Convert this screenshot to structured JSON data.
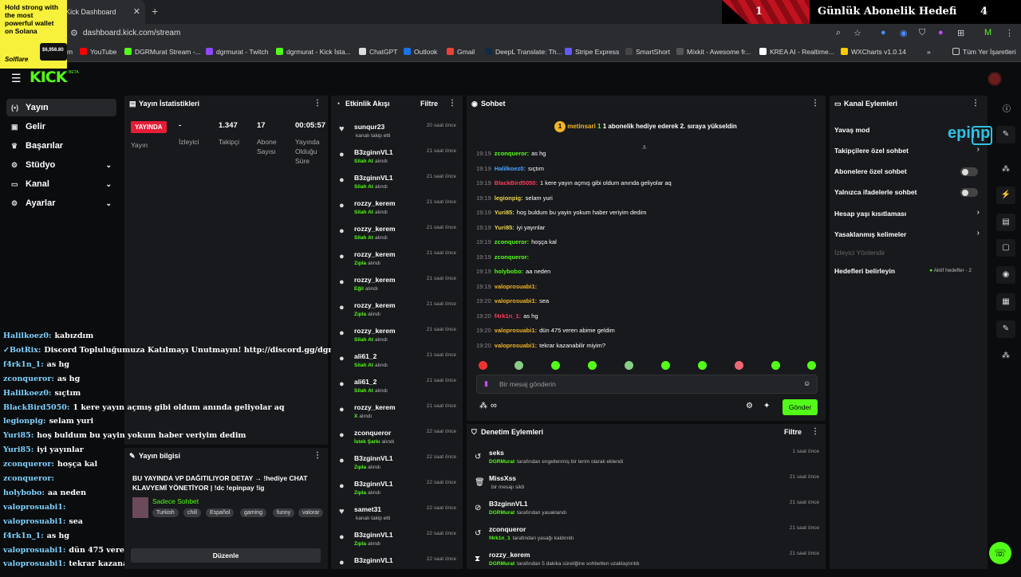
{
  "browser": {
    "tab_title": "Kick Dashboard",
    "url": "dashboard.kick.com/stream",
    "bookmarks": [
      "m",
      "YouTube",
      "DGRMurat Stream -...",
      "dgrmurat - Twitch",
      "dgrmurat - Kick İsta...",
      "ChatGPT",
      "Outlook",
      "Gmail",
      "DeepL Translate: Th...",
      "Stripe Express",
      "SmartShort",
      "Mixkit - Awesome fr...",
      "KREA AI - Realtime...",
      "WXCharts v1.0.14",
      "Tüm Yer İşaretleri"
    ]
  },
  "ad": {
    "text": "Hold strong with the most powerful wallet on Solana",
    "brand": "Solflare",
    "price": "$6,956.80"
  },
  "goal": {
    "left_value": "1",
    "title": "Günlük Abonelik Hedefi",
    "right_value": "4"
  },
  "header": {
    "logo": "KICK",
    "beta": "BETA"
  },
  "nav": {
    "items": [
      {
        "label": "Yayın",
        "icon": "broadcast-icon"
      },
      {
        "label": "Gelir",
        "icon": "money-icon"
      },
      {
        "label": "Başarılar",
        "icon": "trophy-icon"
      },
      {
        "label": "Stüdyo",
        "icon": "gear-icon"
      },
      {
        "label": "Kanal",
        "icon": "monitor-icon"
      },
      {
        "label": "Ayarlar",
        "icon": "gear-icon"
      }
    ]
  },
  "stats": {
    "title": "Yayın İstatistikleri",
    "live": "YAYINDA",
    "live_label": "Yayın",
    "viewers_value": "-",
    "viewers_label": "İzleyici",
    "followers_value": "1.347",
    "followers_label": "Takipçi",
    "subs_value": "17",
    "subs_label": "Abone Sayısı",
    "duration_value": "00:05:57",
    "duration_label": "Yayında Olduğu Süre"
  },
  "stream_info": {
    "title": "Yayın bilgisi",
    "stream_title": "BU YAYINDA VP DAĞITILIYOR DETAY → !hediye CHAT KLAVYEMİ YÖNETİYOR | !dc !epinpay !ig",
    "category": "Sadece Sohbet",
    "tags": [
      "Turkish",
      "chill",
      "Español",
      "gaming",
      "funny",
      "valorar"
    ],
    "edit": "Düzenle"
  },
  "overlay_chat": [
    {
      "u": "Halilkoez0:",
      "m": "kabızdım"
    },
    {
      "u": "✓BotRix:",
      "m": "Discord Topluluğumuza Katılmayı Unutmayın! http://discord.gg/dgrmurat"
    },
    {
      "u": "f4rk1n_1:",
      "m": "as hg"
    },
    {
      "u": "zconqueror:",
      "m": "as hg"
    },
    {
      "u": "Halilkoez0:",
      "m": "sıçtım"
    },
    {
      "u": "BlackBird5050:",
      "m": "1 kere yayın açmış gibi oldum anında geliyolar aq"
    },
    {
      "u": "legionpig:",
      "m": "selam yuri"
    },
    {
      "u": "Yuri85:",
      "m": "hoş buldum bu yayin yokum haber veriyim dedim"
    },
    {
      "u": "Yuri85:",
      "m": "iyi yayınlar"
    },
    {
      "u": "zconqueror:",
      "m": "hoşça kal"
    },
    {
      "u": "zconqueror:",
      "m": ""
    },
    {
      "u": "holybobo:",
      "m": "aa neden"
    },
    {
      "u": "valoprosuabi1:",
      "m": ""
    },
    {
      "u": "valoprosuabi1:",
      "m": "sea"
    },
    {
      "u": "f4rk1n_1:",
      "m": "as hg"
    },
    {
      "u": "valoprosuabi1:",
      "m": "dün 475 veren abime geldim"
    },
    {
      "u": "valoprosuabi1:",
      "m": "tekrar kazanabilir miyim?"
    }
  ],
  "activity": {
    "title": "Etkinlik Akışı",
    "filter": "Filtre",
    "items": [
      {
        "name": "sunqur23",
        "event": "kanalı takip etti",
        "action": "",
        "time": "20 saat önce",
        "icon": "heart-icon"
      },
      {
        "name": "B3zginnVL1",
        "event": "alındı",
        "action": "Silah At",
        "time": "21 saat önce",
        "icon": "gift-icon"
      },
      {
        "name": "B3zginnVL1",
        "event": "alındı",
        "action": "Silah At",
        "time": "21 saat önce",
        "icon": "gift-icon"
      },
      {
        "name": "rozzy_kerem",
        "event": "alındı",
        "action": "Silah At",
        "time": "21 saat önce",
        "icon": "gift-icon"
      },
      {
        "name": "rozzy_kerem",
        "event": "alındı",
        "action": "Silah At",
        "time": "21 saat önce",
        "icon": "gift-icon"
      },
      {
        "name": "rozzy_kerem",
        "event": "alındı",
        "action": "Zıpla",
        "time": "21 saat önce",
        "icon": "gift-icon"
      },
      {
        "name": "rozzy_kerem",
        "event": "alındı",
        "action": "Eğil",
        "time": "21 saat önce",
        "icon": "gift-icon"
      },
      {
        "name": "rozzy_kerem",
        "event": "alındı",
        "action": "Zıpla",
        "time": "21 saat önce",
        "icon": "gift-icon"
      },
      {
        "name": "rozzy_kerem",
        "event": "alındı",
        "action": "Silah At",
        "time": "21 saat önce",
        "icon": "gift-icon"
      },
      {
        "name": "ali61_2",
        "event": "alındı",
        "action": "Silah At",
        "time": "21 saat önce",
        "icon": "gift-icon"
      },
      {
        "name": "ali61_2",
        "event": "alındı",
        "action": "Silah At",
        "time": "21 saat önce",
        "icon": "gift-icon"
      },
      {
        "name": "rozzy_kerem",
        "event": "alındı",
        "action": "X",
        "time": "21 saat önce",
        "icon": "gift-icon"
      },
      {
        "name": "zconqueror",
        "event": "alındı",
        "action": "İstek Şarkı",
        "time": "22 saat önce",
        "icon": "gift-icon"
      },
      {
        "name": "B3zginnVL1",
        "event": "alındı",
        "action": "Zıpla",
        "time": "22 saat önce",
        "icon": "gift-icon"
      },
      {
        "name": "B3zginnVL1",
        "event": "alındı",
        "action": "Zıpla",
        "time": "22 saat önce",
        "icon": "gift-icon"
      },
      {
        "name": "samet31",
        "event": "kanalı takip etti",
        "action": "",
        "time": "22 saat önce",
        "icon": "heart-icon"
      },
      {
        "name": "B3zginnVL1",
        "event": "alındı",
        "action": "Zıpla",
        "time": "22 saat önce",
        "icon": "gift-icon"
      },
      {
        "name": "B3zginnVL1",
        "event": "",
        "action": "",
        "time": "22 saat önce",
        "icon": "gift-icon"
      }
    ]
  },
  "chat": {
    "title": "Sohbet",
    "pinned_user": "metinsari",
    "pinned_count": "1",
    "pinned_text": "1 abonelik hediye ederek 2. sıraya yükseldin",
    "input_placeholder": "Bir mesaj gönderin",
    "send": "Gönder",
    "messages": [
      {
        "t": "19:19",
        "u": "zconqueror:",
        "m": "as hg",
        "c": "#53fc18"
      },
      {
        "t": "19:19",
        "u": "Halilkoez0:",
        "m": "sıçtım",
        "c": "#4aa3ff"
      },
      {
        "t": "19:19",
        "u": "BlackBird5050:",
        "m": "1 kere yayın açmış gibi oldum anında geliyolar aq",
        "c": "#ff3b5c"
      },
      {
        "t": "19:19",
        "u": "legionpig:",
        "m": "selam yuri",
        "c": "#e8d44d"
      },
      {
        "t": "19:19",
        "u": "Yuri85:",
        "m": "hoş buldum bu yayin yokum haber veriyim dedim",
        "c": "#e8d44d"
      },
      {
        "t": "19:19",
        "u": "Yuri85:",
        "m": "iyi yayınlar",
        "c": "#e8d44d"
      },
      {
        "t": "19:19",
        "u": "zconqueror:",
        "m": "hoşça kal",
        "c": "#53fc18"
      },
      {
        "t": "19:19",
        "u": "zconqueror:",
        "m": "",
        "c": "#53fc18"
      },
      {
        "t": "19:19",
        "u": "holybobo:",
        "m": "aa neden",
        "c": "#53fc18"
      },
      {
        "t": "19:19",
        "u": "valoprosuabi1:",
        "m": "",
        "c": "#f0b429"
      },
      {
        "t": "19:20",
        "u": "valoprosuabi1:",
        "m": "sea",
        "c": "#f0b429"
      },
      {
        "t": "19:20",
        "u": "f4rk1n_1:",
        "m": "as hg",
        "c": "#ff3b5c"
      },
      {
        "t": "19:20",
        "u": "valoprosuabi1:",
        "m": "dün 475 veren abime geldim",
        "c": "#f0b429"
      },
      {
        "t": "19:20",
        "u": "valoprosuabi1:",
        "m": "tekrar kazanabilir miyim?",
        "c": "#f0b429"
      }
    ]
  },
  "moderation": {
    "title": "Denetim Eylemleri",
    "filter": "Filtre",
    "items": [
      {
        "name": "seks",
        "by": "DGRMurat",
        "desc": "tarafından engellenmiş bir terim olarak eklendi",
        "time": "1 saat önce",
        "icon": "undo-icon"
      },
      {
        "name": "MissXss",
        "by": "",
        "desc": "bir mesajı sildi",
        "time": "21 saat önce",
        "icon": "trash-icon"
      },
      {
        "name": "B3zginnVL1",
        "by": "DGRMurat",
        "desc": "tarafından yasaklandı",
        "time": "21 saat önce",
        "icon": "ban-icon"
      },
      {
        "name": "zconqueror",
        "by": "f4rk1n_1",
        "desc": "tarafından yasağı kaldırıldı",
        "time": "21 saat önce",
        "icon": "undo-icon"
      },
      {
        "name": "rozzy_kerem",
        "by": "DGRMurat",
        "desc": "tarafından 5 dakika süreliğine sohbetten uzaklaştırıldı",
        "time": "21 saat önce",
        "icon": "hourglass-icon"
      }
    ]
  },
  "channel": {
    "title": "Kanal Eylemleri",
    "slow": "Yavaş mod",
    "followers_only": "Takipçilere özel sohbet",
    "subs_only": "Abonelere özel sohbet",
    "emotes_only": "Yalnızca ifadelerle sohbet",
    "age": "Hesap yaşı kısıtlaması",
    "banned_words": "Yasaklanmış kelimeler",
    "redirect": "İzleyici Yönlendir",
    "goals": "Hedefleri belirleyin",
    "goals_status": "Aktif hedefler - 2",
    "sponsor": "epinpay"
  }
}
